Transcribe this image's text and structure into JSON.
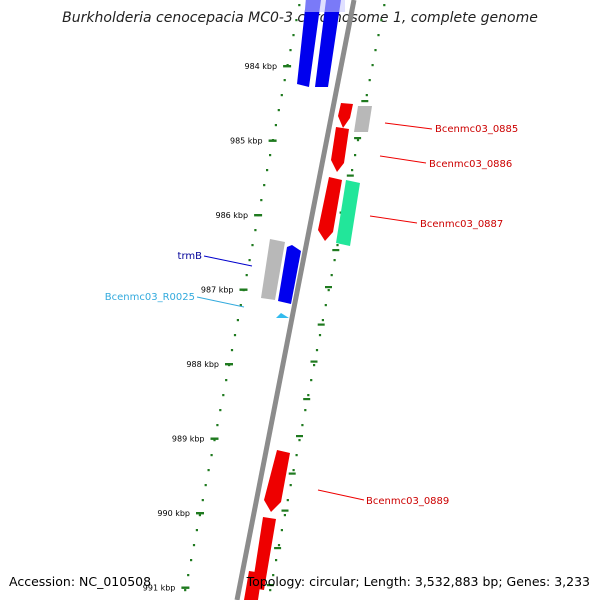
{
  "title": "Burkholderia cenocepacia MC0-3 chromosome 1, complete genome",
  "footer": {
    "accession": "Accession: NC_010508",
    "summary": "Topology: circular; Length: 3,532,883 bp; Genes: 3,233"
  },
  "colors": {
    "backbone": "#8c8c8c",
    "tick": "#1f7a1f",
    "cds_forward": "#0000ee",
    "cds_reverse": "#ee0000",
    "pseudo": "#b8b8b8",
    "rna": "#22e69a",
    "trna": "#33bbee",
    "label_red": "#cc0000",
    "label_blue": "#000099",
    "label_cyan": "#33aadd"
  },
  "ticks": [
    {
      "label": "984 kbp"
    },
    {
      "label": "985 kbp"
    },
    {
      "label": "986 kbp"
    },
    {
      "label": "987 kbp"
    },
    {
      "label": "988 kbp"
    },
    {
      "label": "989 kbp"
    },
    {
      "label": "990 kbp"
    },
    {
      "label": "991 kbp"
    }
  ],
  "gene_labels": [
    {
      "text": "Bcenmc03_0885"
    },
    {
      "text": "Bcenmc03_0886"
    },
    {
      "text": "Bcenmc03_0887"
    },
    {
      "text": "trmB"
    },
    {
      "text": "Bcenmc03_R0025"
    },
    {
      "text": "Bcenmc03_0889"
    }
  ]
}
